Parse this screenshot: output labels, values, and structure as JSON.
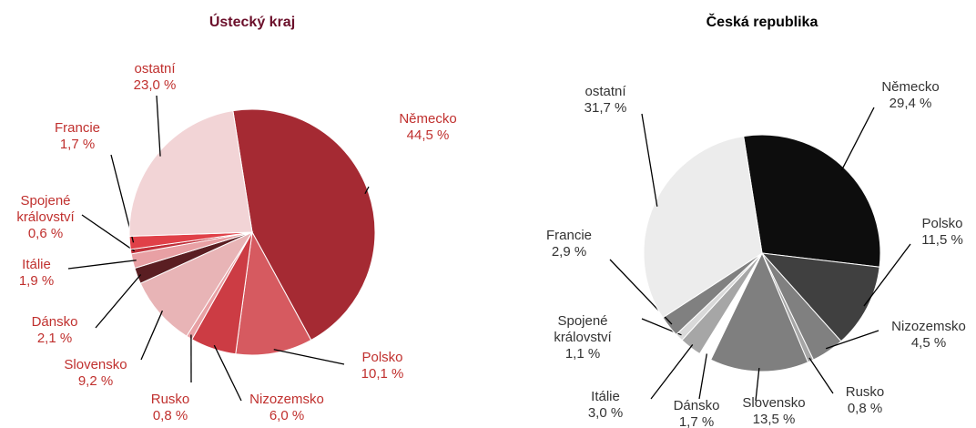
{
  "chart_data": [
    {
      "type": "pie",
      "title": "Ústecký kraj",
      "categories": [
        "Německo",
        "Polsko",
        "Nizozemsko",
        "Rusko",
        "Slovensko",
        "Dánsko",
        "Itálie",
        "Spojené království",
        "Francie",
        "ostatní"
      ],
      "values": [
        44.5,
        10.1,
        6.0,
        0.8,
        9.2,
        2.1,
        1.9,
        0.6,
        1.7,
        23.0
      ],
      "value_labels": [
        "44,5 %",
        "10,1 %",
        "6,0 %",
        "0,8 %",
        "9,2 %",
        "2,1 %",
        "1,9 %",
        "0,6 %",
        "1,7 %",
        "23,0 %"
      ],
      "colors": [
        "#a52a33",
        "#d65a60",
        "#cc3c44",
        "#e8a0a4",
        "#e8b4b6",
        "#5a1e22",
        "#e8a0a4",
        "#c0303a",
        "#e04048",
        "#f2d4d6"
      ]
    },
    {
      "type": "pie",
      "title": "Česká republika",
      "categories": [
        "Německo",
        "Polsko",
        "Nizozemsko",
        "Rusko",
        "Slovensko",
        "Dánsko",
        "Itálie",
        "Spojené království",
        "Francie",
        "ostatní"
      ],
      "values": [
        29.4,
        11.5,
        4.5,
        0.8,
        13.5,
        1.7,
        3.0,
        1.1,
        2.9,
        31.7
      ],
      "value_labels": [
        "29,4 %",
        "11,5 %",
        "4,5 %",
        "0,8 %",
        "13,5 %",
        "1,7 %",
        "3,0 %",
        "1,1 %",
        "2,9 %",
        "31,7 %"
      ],
      "colors": [
        "#0d0d0d",
        "#404040",
        "#808080",
        "#a6a6a6",
        "#7f7f7f",
        "#ffffff",
        "#a6a6a6",
        "#d9d9d9",
        "#808080",
        "#ececec"
      ]
    }
  ]
}
